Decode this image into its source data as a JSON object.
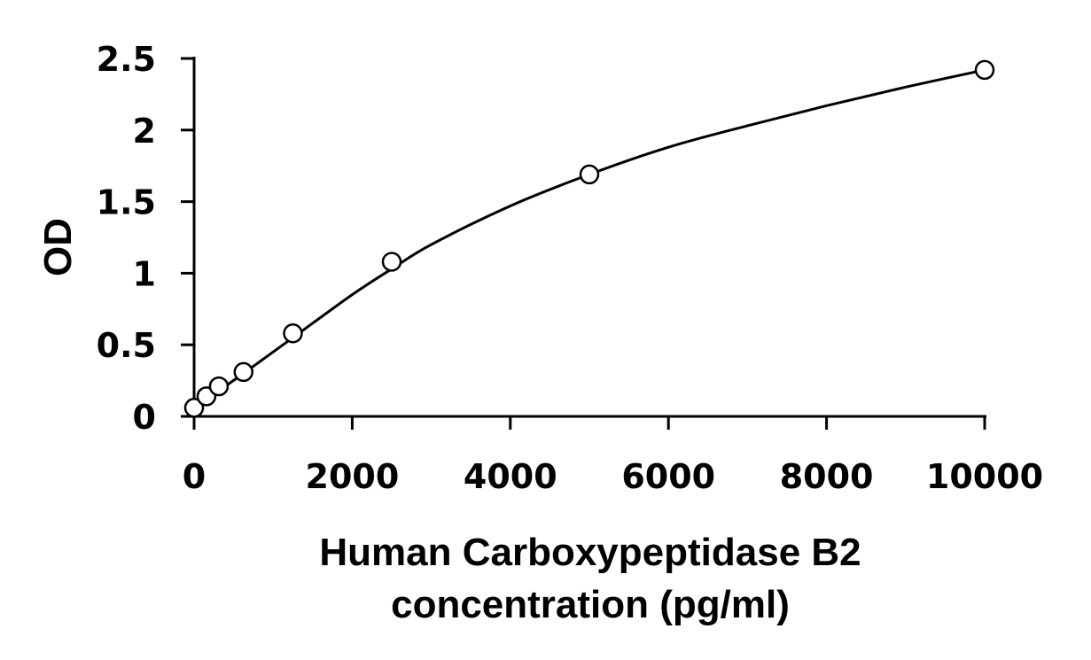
{
  "chart_data": {
    "type": "scatter",
    "title": "",
    "xlabel_lines": [
      "Human Carboxypeptidase B2",
      "concentration (pg/ml)"
    ],
    "ylabel": "OD",
    "xlim": [
      0,
      10000
    ],
    "ylim": [
      0,
      2.5
    ],
    "x_ticks": [
      0,
      2000,
      4000,
      6000,
      8000,
      10000
    ],
    "y_ticks": [
      0,
      0.5,
      1,
      1.5,
      2,
      2.5
    ],
    "x_tick_labels": [
      "0",
      "2000",
      "4000",
      "6000",
      "8000",
      "10000"
    ],
    "y_tick_labels": [
      "0",
      "0.5",
      "1",
      "1.5",
      "2",
      "2.5"
    ],
    "grid": false,
    "legend": "none",
    "series": [
      {
        "marker": "open-circle",
        "x": [
          0,
          156,
          313,
          625,
          1250,
          2500,
          5000,
          10000
        ],
        "y": [
          0.06,
          0.14,
          0.21,
          0.31,
          0.58,
          1.08,
          1.69,
          2.42
        ]
      }
    ],
    "fit_curve": {
      "x": [
        0,
        156,
        313,
        625,
        1250,
        2000,
        2500,
        3000,
        4000,
        5000,
        6000,
        7000,
        8000,
        9000,
        10000
      ],
      "y": [
        0.06,
        0.12,
        0.18,
        0.3,
        0.55,
        0.85,
        1.03,
        1.2,
        1.47,
        1.69,
        1.88,
        2.03,
        2.17,
        2.3,
        2.42
      ]
    },
    "colors": {
      "line": "#000000",
      "marker_fill": "#ffffff",
      "background": "#ffffff"
    }
  }
}
